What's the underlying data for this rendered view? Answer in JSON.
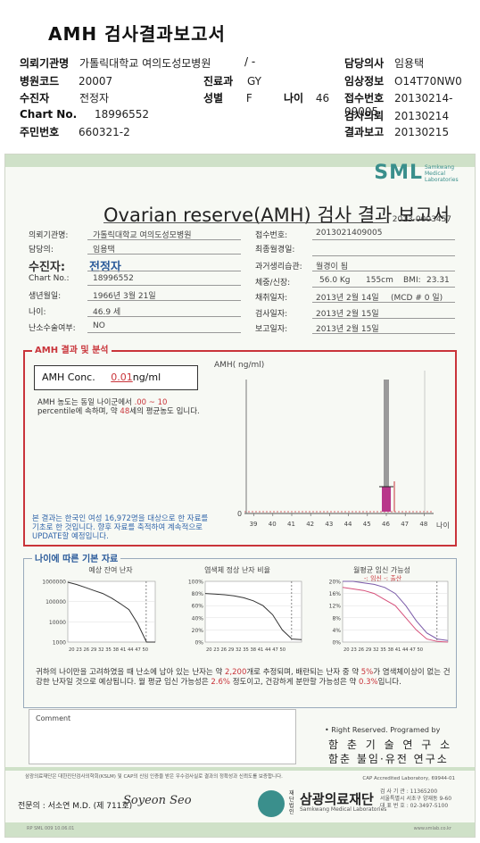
{
  "header": {
    "title": "AMH 검사결과보고서",
    "fields": {
      "institution_label": "의뢰기관명",
      "institution_value": "가톨릭대학교 여의도성모병원",
      "dash": "/ -",
      "physician_label": "담당의사",
      "physician_value": "임용택",
      "hospital_code_label": "병원코드",
      "hospital_code_value": "20007",
      "dept_label": "진료과",
      "dept_value": "GY",
      "clinical_label": "임상정보",
      "clinical_value": "O14T70NW0",
      "patient_label": "수진자",
      "patient_value": "전정자",
      "sex_label": "성별",
      "sex_value": "F",
      "age_label": "나이",
      "age_value": "46",
      "receipt_label": "접수번호",
      "receipt_value": "20130214-09005",
      "chart_label": "Chart No.",
      "chart_value": "18996552",
      "request_label": "검사의뢰",
      "request_value": "20130214",
      "rrn_label": "주민번호",
      "rrn_value": "660321-2",
      "report_label": "결과보고",
      "report_value": "20130215"
    }
  },
  "doc": {
    "logo": "SML",
    "logo_sub": "Samkwang Medical Laboratories",
    "title": "Ovarian reserve(AMH) 검사 결과 보고서",
    "doc_no": "2013-0003457",
    "info": {
      "inst_label": "의뢰기관명:",
      "inst_value": "가톨릭대학교 여의도성모병원",
      "recv_label": "접수번호:",
      "recv_value": "2013021409005",
      "doctor_label": "담당의:",
      "doctor_value": "임용택",
      "lastmens_label": "최종월경일:",
      "lastmens_value": "",
      "patient_label": "수진자:",
      "patient_value": "전정자",
      "history_label": "과거생리습관:",
      "history_value": "월경이 됨",
      "chart_label": "Chart No.:",
      "chart_value": "18996552",
      "body_label": "체중/신장:",
      "body_weight": "56.0 Kg",
      "body_height": "155cm",
      "bmi_label": "BMI:",
      "bmi_value": "23.31",
      "birth_label": "생년월일:",
      "birth_value": "1966년 3월 21일",
      "collect_label": "채취일자:",
      "collect_value": "2013년 2월 14일",
      "mcd": "(MCD # 0 일)",
      "age_label": "나이:",
      "age_value": "46.9 세",
      "test_label": "검사일자:",
      "test_value": "2013년 2월 15일",
      "surgery_label": "난소수술여부:",
      "surgery_value": "NO",
      "report_label": "보고일자:",
      "report_value": "2013년 2월 15일"
    },
    "amh_section_title": "AMH 결과 및 분석",
    "amh_conc_label": "AMH Conc.",
    "amh_conc_value": "0.01",
    "amh_conc_unit": "ng/ml",
    "amh_desc_1": "AMH 농도는 동일 나이군에서",
    "amh_desc_range": ".00 ~ 10",
    "amh_desc_2": "percentile에 속하며, 약",
    "amh_desc_age": "48",
    "amh_desc_3": "세의 평균농도 입니다.",
    "amh_note": "본 결과는 한국인 여성 16,972명을 대상으로 한 자료를 기초로 한 것입니다. 향후 자료를 축적하여 계속적으로 UPDATE할 예정입니다.",
    "sec2_title": "나이에 따른 기본 자료",
    "mini_titles": [
      "예상 잔여 난자",
      "염색체 정상 난자 비율",
      "월평균 임신 가능성"
    ],
    "mini_legend": "-: 임신 -: 출산",
    "summary_1": "귀하의 나이만을 고려하였을 때 난소에 남아 있는 난자는 약",
    "summary_eggs": "2,200",
    "summary_2": "개로 추정되며, 배란되는 난자 중 약",
    "summary_pct": "5%",
    "summary_3": "가 염색체이상이 없는 건강한 난자일 것으로 예상됩니다. 월 평균 임신 가능성은",
    "summary_preg": "2.6%",
    "summary_4": "정도이고, 건강하게 분만할 가능성은 약",
    "summary_birth": "0.3%",
    "summary_5": "입니다.",
    "comment_label": "Comment",
    "rights": "• Right Reserved. Programed by",
    "inst1": "함 춘 기 술 연 구 소",
    "inst2": "함춘 불임·유전 연구소",
    "footer_line": "삼광의료재단은 대한진단검사의학회(KSLM) 및 CAP의 신임 인증을 받은 우수검사실로 결과의 정확성과 신뢰도를 보증합니다.",
    "cap": "CAP Accredited Laboratory, 69944-01",
    "specialist": "전문의 : 서소연 M.D. (제 711호)",
    "signature": "Soyeon Seo",
    "fdn_small": "재단 법인",
    "fdn_name": "삼광의료재단",
    "fdn_sub": "Samkwang Medical Laboratories",
    "contact_1": "검 사 기 관 : 11365200",
    "contact_2": "서울특별시 서초구 양재동 9-60",
    "contact_3": "대 표 번 호 : 02-3497-5100",
    "bot_left": "RP SML 009 10.06.01",
    "bot_right": "www.smlab.co.kr"
  },
  "chart_data": [
    {
      "type": "bar",
      "title": "",
      "ylabel": "AMH( ng/ml)",
      "xlabel": "나이",
      "categories": [
        "39",
        "40",
        "41",
        "42",
        "43",
        "44",
        "45",
        "46",
        "47",
        "48"
      ],
      "series": [
        {
          "name": "",
          "values": [
            0,
            0,
            0,
            0,
            0,
            0,
            0,
            0.01,
            0,
            0
          ]
        }
      ],
      "y_zero_label": "0",
      "colors": {
        "bar": "#b8378a",
        "range": "#9a9a9a",
        "reference": "#c9343a"
      }
    },
    {
      "type": "line",
      "title": "예상 잔여 난자",
      "x": [
        20,
        23,
        26,
        29,
        32,
        35,
        38,
        41,
        44,
        47,
        50
      ],
      "series": [
        {
          "name": "",
          "values": [
            900000,
            700000,
            500000,
            350000,
            250000,
            150000,
            80000,
            40000,
            8000,
            1000,
            800
          ]
        }
      ],
      "yticks": [
        "1000000",
        "100000",
        "10000",
        "1000"
      ],
      "xticks": "20 23 26 29 32 35 38 41 44 47 50",
      "scale": "log"
    },
    {
      "type": "line",
      "title": "염색체 정상 난자 비율",
      "x": [
        20,
        23,
        26,
        29,
        32,
        35,
        38,
        41,
        44,
        47,
        50
      ],
      "series": [
        {
          "name": "",
          "values": [
            80,
            79,
            78,
            76,
            73,
            68,
            60,
            45,
            20,
            5,
            4
          ]
        }
      ],
      "yticks": [
        "100%",
        "80%",
        "60%",
        "40%",
        "20%",
        "0%"
      ],
      "xticks": "20 23 26 29 32 35 38 41 44 47 50"
    },
    {
      "type": "line",
      "title": "월평균 임신 가능성",
      "x": [
        20,
        23,
        26,
        29,
        32,
        35,
        38,
        41,
        44,
        47,
        50
      ],
      "series": [
        {
          "name": "임신",
          "values": [
            20,
            20,
            19.5,
            19,
            18,
            16,
            12,
            7,
            3,
            1,
            0.5
          ]
        },
        {
          "name": "출산",
          "values": [
            18,
            17.5,
            17,
            16,
            14,
            12,
            8,
            4,
            1,
            0.2,
            0
          ]
        }
      ],
      "yticks": [
        "20%",
        "16%",
        "12%",
        "8%",
        "4%",
        "0%"
      ],
      "xticks": "20 23 26 29 32 35 38 41 44 47 50"
    }
  ]
}
